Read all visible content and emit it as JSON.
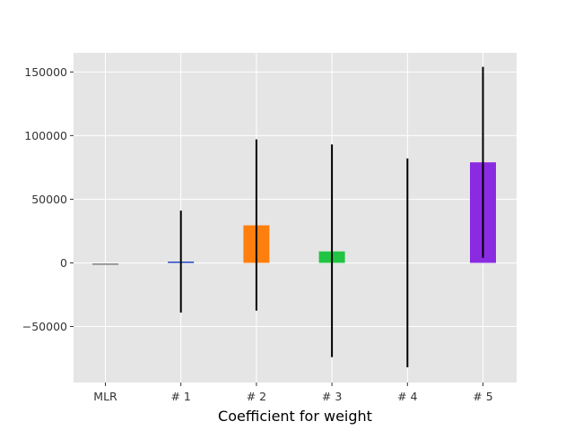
{
  "chart_data": {
    "type": "bar",
    "title": "",
    "xlabel": "Coefficient for weight",
    "ylabel": "",
    "categories": [
      "MLR",
      "# 1",
      "# 2",
      "# 3",
      "# 4",
      "# 5"
    ],
    "values": [
      -1000,
      500,
      29500,
      9000,
      0,
      79000
    ],
    "error_low": [
      null,
      -39000,
      -37500,
      -74000,
      -82000,
      4000
    ],
    "error_high": [
      null,
      41000,
      97000,
      93000,
      82000,
      154000
    ],
    "bar_colors": [
      "#808080",
      "#1f3fbf",
      "#ff7f0e",
      "#22c443",
      "#7f7f7f",
      "#8a2be2"
    ],
    "ylim": [
      -94000,
      165000
    ],
    "yticks": [
      -50000,
      0,
      50000,
      100000,
      150000
    ],
    "ytick_labels": [
      "−50000",
      "0",
      "50000",
      "100000",
      "150000"
    ],
    "grid": true,
    "background": "#e5e5e5",
    "grid_color": "#ffffff",
    "error_color": "#000000"
  }
}
